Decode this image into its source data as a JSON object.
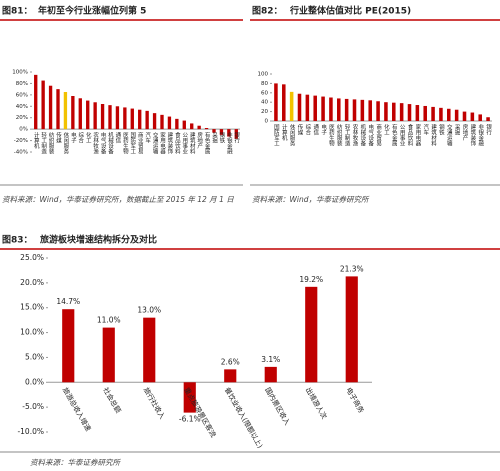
{
  "chart_data": [
    {
      "type": "bar",
      "figure": "图81：",
      "title": "年初至今行业涨幅位列第 5",
      "source": "资料来源：Wind，华泰证券研究所，数据截止至 2015 年 12 月 1 日",
      "categories": [
        "计算机",
        "轻工制造",
        "纺织服装",
        "传媒",
        "休闲服务",
        "电子",
        "综合",
        "化工",
        "农林牧渔",
        "电气设备",
        "机械设备",
        "通信",
        "医药生物",
        "国防军工",
        "商业贸易",
        "汽车",
        "交通运输",
        "家用电器",
        "建筑装饰",
        "食品饮料",
        "公用事业",
        "建筑材料",
        "房地产",
        "有色金属",
        "采掘",
        "钢铁",
        "非银金融",
        "银行"
      ],
      "values": [
        95,
        85,
        76,
        70,
        65,
        58,
        54,
        50,
        47,
        44,
        42,
        40,
        38,
        36,
        34,
        32,
        28,
        25,
        22,
        18,
        15,
        10,
        6,
        2,
        -6,
        -10,
        -13,
        -17
      ],
      "colors": [
        "#c00000",
        "#c00000",
        "#c00000",
        "#c00000",
        "#f2c200",
        "#c00000",
        "#c00000",
        "#c00000",
        "#c00000",
        "#c00000",
        "#c00000",
        "#c00000",
        "#c00000",
        "#c00000",
        "#c00000",
        "#c00000",
        "#c00000",
        "#c00000",
        "#c00000",
        "#c00000",
        "#c00000",
        "#c00000",
        "#c00000",
        "#c00000",
        "#c00000",
        "#c00000",
        "#c00000",
        "#c00000"
      ],
      "ylim": [
        -40,
        100
      ],
      "yticks": [
        {
          "value": -40,
          "label": "-40%"
        },
        {
          "value": -20,
          "label": "-20%"
        },
        {
          "value": 0,
          "label": "0%"
        },
        {
          "value": 20,
          "label": "20%"
        },
        {
          "value": 40,
          "label": "40%"
        },
        {
          "value": 60,
          "label": "60%"
        },
        {
          "value": 80,
          "label": "80%"
        },
        {
          "value": 100,
          "label": "100%"
        }
      ]
    },
    {
      "type": "bar",
      "figure": "图82：",
      "title": "行业整体估值对比 PE(2015)",
      "source": "资料来源：Wind，华泰证券研究所",
      "categories": [
        "国防军工",
        "计算机",
        "休闲服务",
        "传媒",
        "综合",
        "通信",
        "电子",
        "医药生物",
        "纺织服装",
        "轻工制造",
        "农林牧渔",
        "机械设备",
        "电气设备",
        "商业贸易",
        "化工",
        "有色金属",
        "公用事业",
        "食品饮料",
        "家用电器",
        "汽车",
        "建筑材料",
        "钢铁",
        "交通运输",
        "采掘",
        "房地产",
        "建筑装饰",
        "非银金融",
        "银行"
      ],
      "values": [
        80,
        78,
        62,
        58,
        56,
        54,
        52,
        50,
        48,
        47,
        46,
        45,
        44,
        42,
        40,
        39,
        38,
        36,
        34,
        32,
        30,
        28,
        26,
        24,
        20,
        18,
        14,
        8
      ],
      "colors": [
        "#c00000",
        "#c00000",
        "#f2c200",
        "#c00000",
        "#c00000",
        "#c00000",
        "#c00000",
        "#c00000",
        "#c00000",
        "#c00000",
        "#c00000",
        "#c00000",
        "#c00000",
        "#c00000",
        "#c00000",
        "#c00000",
        "#c00000",
        "#c00000",
        "#c00000",
        "#c00000",
        "#c00000",
        "#c00000",
        "#c00000",
        "#c00000",
        "#c00000",
        "#c00000",
        "#c00000",
        "#c00000"
      ],
      "ylim": [
        0,
        100
      ],
      "yticks": [
        0,
        20,
        40,
        60,
        80,
        100
      ]
    },
    {
      "type": "bar",
      "figure": "图83：",
      "title": "旅游板块增速结构拆分及对比",
      "source": "资料来源：华泰证券研究所",
      "categories": [
        "旅游总收入增速",
        "社会总额",
        "旅行社收入",
        "重点旅游景区客流",
        "餐饮业收入(限额以上)",
        "国内景区收入",
        "出境游人次",
        "电子商务"
      ],
      "values": [
        14.7,
        11.0,
        13.0,
        -6.1,
        2.6,
        3.1,
        19.2,
        21.3
      ],
      "value_labels": [
        "14.7%",
        "11.0%",
        "13.0%",
        "-6.1%",
        "2.6%",
        "3.1%",
        "19.2%",
        "21.3%"
      ],
      "color": "#c00000",
      "ylim": [
        -10,
        25
      ],
      "yticks": [
        {
          "value": -10,
          "label": "-10.0%"
        },
        {
          "value": -5,
          "label": "-5.0%"
        },
        {
          "value": 0,
          "label": "0.0%"
        },
        {
          "value": 5,
          "label": "5.0%"
        },
        {
          "value": 10,
          "label": "10.0%"
        },
        {
          "value": 15,
          "label": "15.0%"
        },
        {
          "value": 20,
          "label": "20.0%"
        },
        {
          "value": 25,
          "label": "25.0%"
        }
      ]
    }
  ]
}
